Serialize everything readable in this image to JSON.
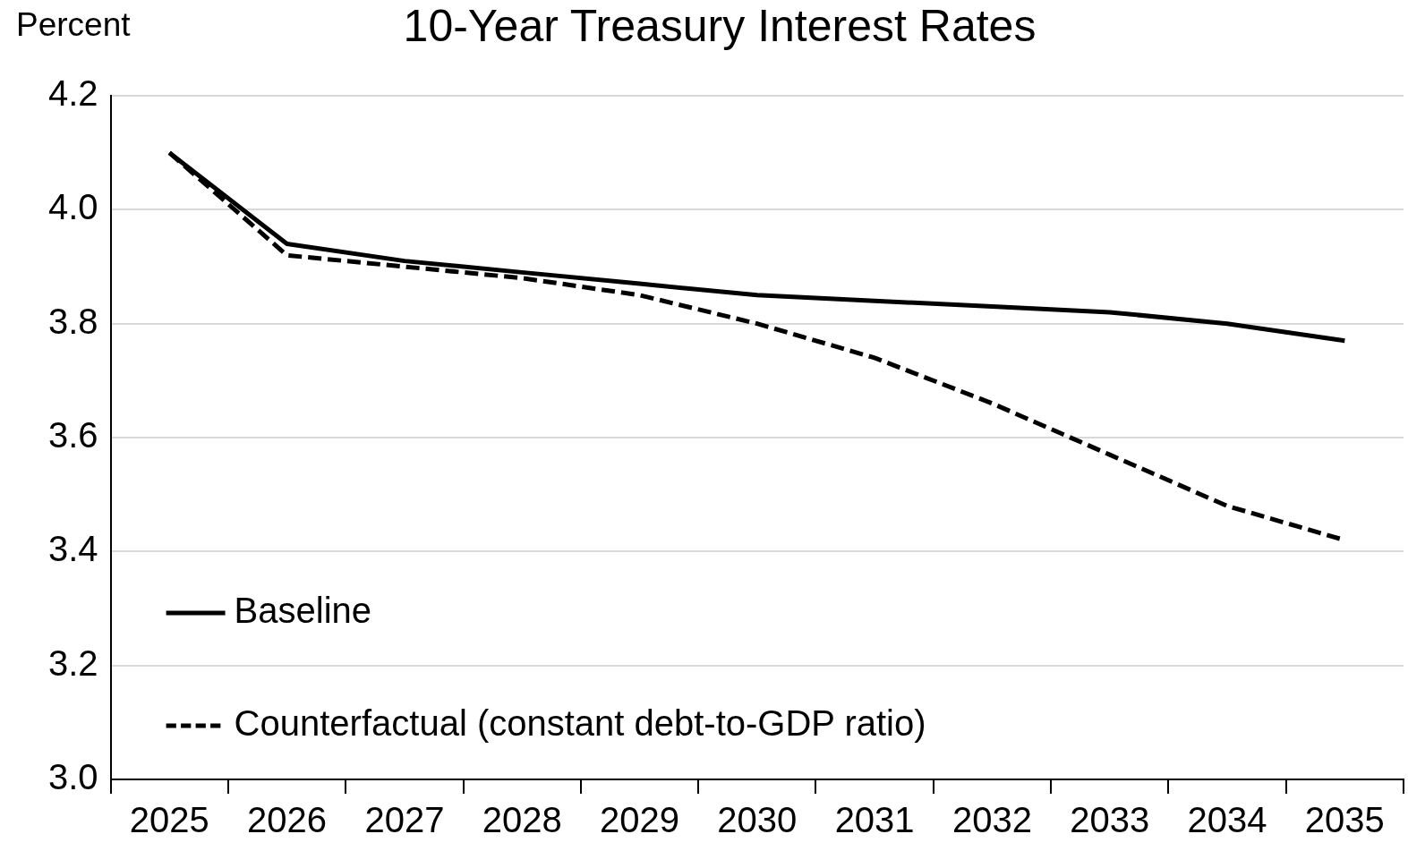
{
  "chart_data": {
    "type": "line",
    "title": "10-Year Treasury Interest Rates",
    "ylabel": "Percent",
    "categories": [
      "2025",
      "2026",
      "2027",
      "2028",
      "2029",
      "2030",
      "2031",
      "2032",
      "2033",
      "2034",
      "2035"
    ],
    "series": [
      {
        "name": "Baseline",
        "color": "#000000",
        "line_style": "solid",
        "values": [
          4.1,
          3.94,
          3.91,
          3.89,
          3.87,
          3.85,
          3.84,
          3.83,
          3.82,
          3.8,
          3.77
        ]
      },
      {
        "name": "Counterfactual (constant debt-to-GDP ratio)",
        "color": "#000000",
        "line_style": "dashed",
        "values": [
          4.1,
          3.92,
          3.9,
          3.88,
          3.85,
          3.8,
          3.74,
          3.66,
          3.57,
          3.48,
          3.42
        ]
      }
    ],
    "ylim": [
      3.0,
      4.2
    ],
    "yticks": [
      {
        "value": 3.0,
        "label": "3.0"
      },
      3.2,
      3.4,
      3.6,
      3.8,
      {
        "value": 4.0,
        "label": "4.0"
      },
      4.2
    ],
    "grid": "y",
    "legend": "bottom left",
    "marker": "none"
  }
}
